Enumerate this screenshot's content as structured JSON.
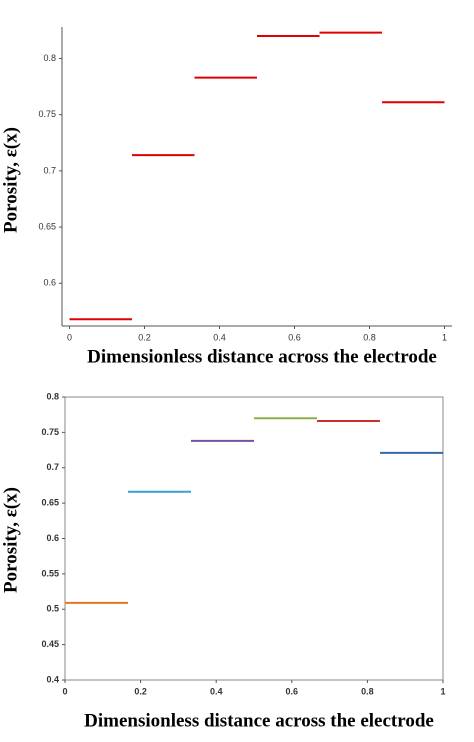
{
  "chart_data": [
    {
      "type": "step",
      "x_edges": [
        0,
        0.1667,
        0.3333,
        0.5,
        0.6667,
        0.8333,
        1
      ],
      "values": [
        0.568,
        0.714,
        0.783,
        0.82,
        0.823,
        0.761
      ],
      "colors": [
        "#e00000",
        "#e00000",
        "#e00000",
        "#e00000",
        "#e00000",
        "#e00000"
      ],
      "xlim": [
        -0.02,
        1.02
      ],
      "xticks": [
        0,
        0.2,
        0.4,
        0.6,
        0.8,
        1
      ],
      "ylim": [
        0.562,
        0.828
      ],
      "yticks": [
        0.6,
        0.65,
        0.7,
        0.75,
        0.8
      ],
      "xlabel": "Dimensionless distance across the electrode",
      "ylabel": "Porosity, ε(x)"
    },
    {
      "type": "step",
      "x_edges": [
        0,
        0.1667,
        0.3333,
        0.5,
        0.6667,
        0.8333,
        1
      ],
      "values": [
        0.509,
        0.666,
        0.738,
        0.77,
        0.766,
        0.721
      ],
      "colors": [
        "#e87722",
        "#3a9fd0",
        "#6f55a0",
        "#8cb04a",
        "#c8302a",
        "#3668a8"
      ],
      "xlim": [
        0,
        1
      ],
      "xticks": [
        0,
        0.2,
        0.4,
        0.6,
        0.8,
        1
      ],
      "ylim": [
        0.4,
        0.8
      ],
      "yticks": [
        0.4,
        0.45,
        0.5,
        0.55,
        0.6,
        0.65,
        0.7,
        0.75,
        0.8
      ],
      "xlabel": "Dimensionless distance across the electrode",
      "ylabel": "Porosity, ε(x)"
    }
  ]
}
